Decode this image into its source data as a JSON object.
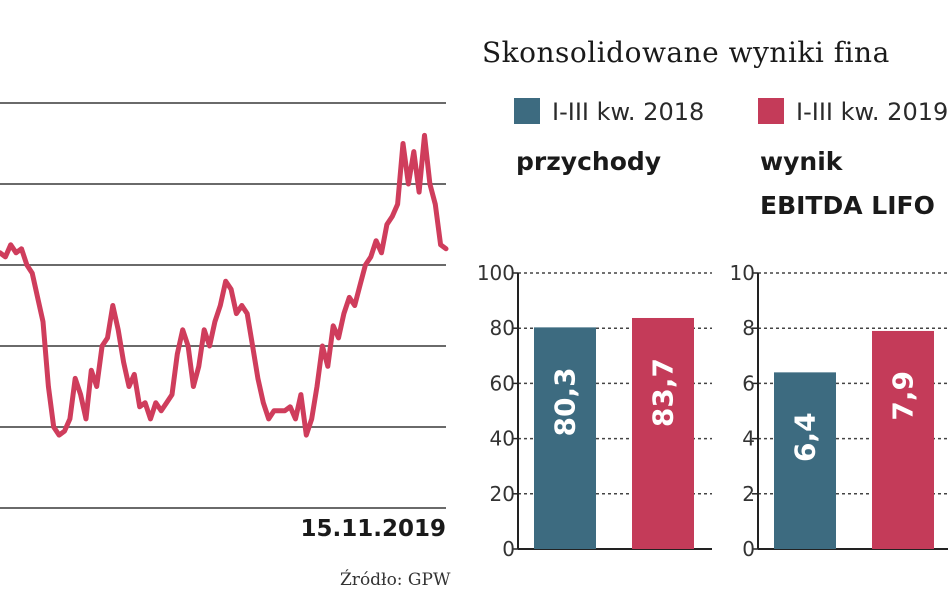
{
  "title": "Skonsolidowane wyniki fina",
  "legend": [
    {
      "label": "I-III kw. 2018",
      "color": "#3d6b80"
    },
    {
      "label": "I-III kw. 2019",
      "color": "#c43b59"
    }
  ],
  "colors": {
    "line": "#cf3d5c",
    "grid": "#6a6a6a",
    "axis": "#222222"
  },
  "source": "Źródło: GPW",
  "chart_data": [
    {
      "type": "line",
      "x_end_label": "15.11.2019",
      "y_range": [
        0,
        100
      ],
      "grid": true,
      "series": [
        {
          "values": [
            63,
            62,
            65,
            63,
            64,
            60,
            58,
            52,
            46,
            30,
            20,
            18,
            19,
            22,
            32,
            28,
            22,
            34,
            30,
            40,
            42,
            50,
            44,
            36,
            30,
            33,
            25,
            26,
            22,
            26,
            24,
            26,
            28,
            38,
            44,
            40,
            30,
            35,
            44,
            40,
            46,
            50,
            56,
            54,
            48,
            50,
            48,
            40,
            32,
            26,
            22,
            24,
            24,
            24,
            25,
            22,
            28,
            18,
            22,
            30,
            40,
            35,
            45,
            42,
            48,
            52,
            50,
            55,
            60,
            62,
            66,
            63,
            70,
            72,
            75,
            90,
            80,
            88,
            78,
            92,
            80,
            75,
            65,
            64
          ]
        }
      ]
    },
    {
      "type": "bar",
      "subtitle": "przychody",
      "categories": [
        "I-III kw. 2018",
        "I-III kw. 2019"
      ],
      "values": [
        80.3,
        83.7
      ],
      "value_labels": [
        "80,3",
        "83,7"
      ],
      "ylim": [
        0,
        100
      ],
      "yticks": [
        0,
        20,
        40,
        60,
        80,
        100
      ]
    },
    {
      "type": "bar",
      "subtitle_lines": [
        "wynik",
        "EBITDA LIFO"
      ],
      "categories": [
        "I-III kw. 2018",
        "I-III kw. 2019"
      ],
      "values": [
        6.4,
        7.9
      ],
      "value_labels": [
        "6,4",
        "7,9"
      ],
      "ylim": [
        0,
        10
      ],
      "yticks": [
        0,
        2,
        4,
        6,
        8,
        10
      ]
    }
  ]
}
